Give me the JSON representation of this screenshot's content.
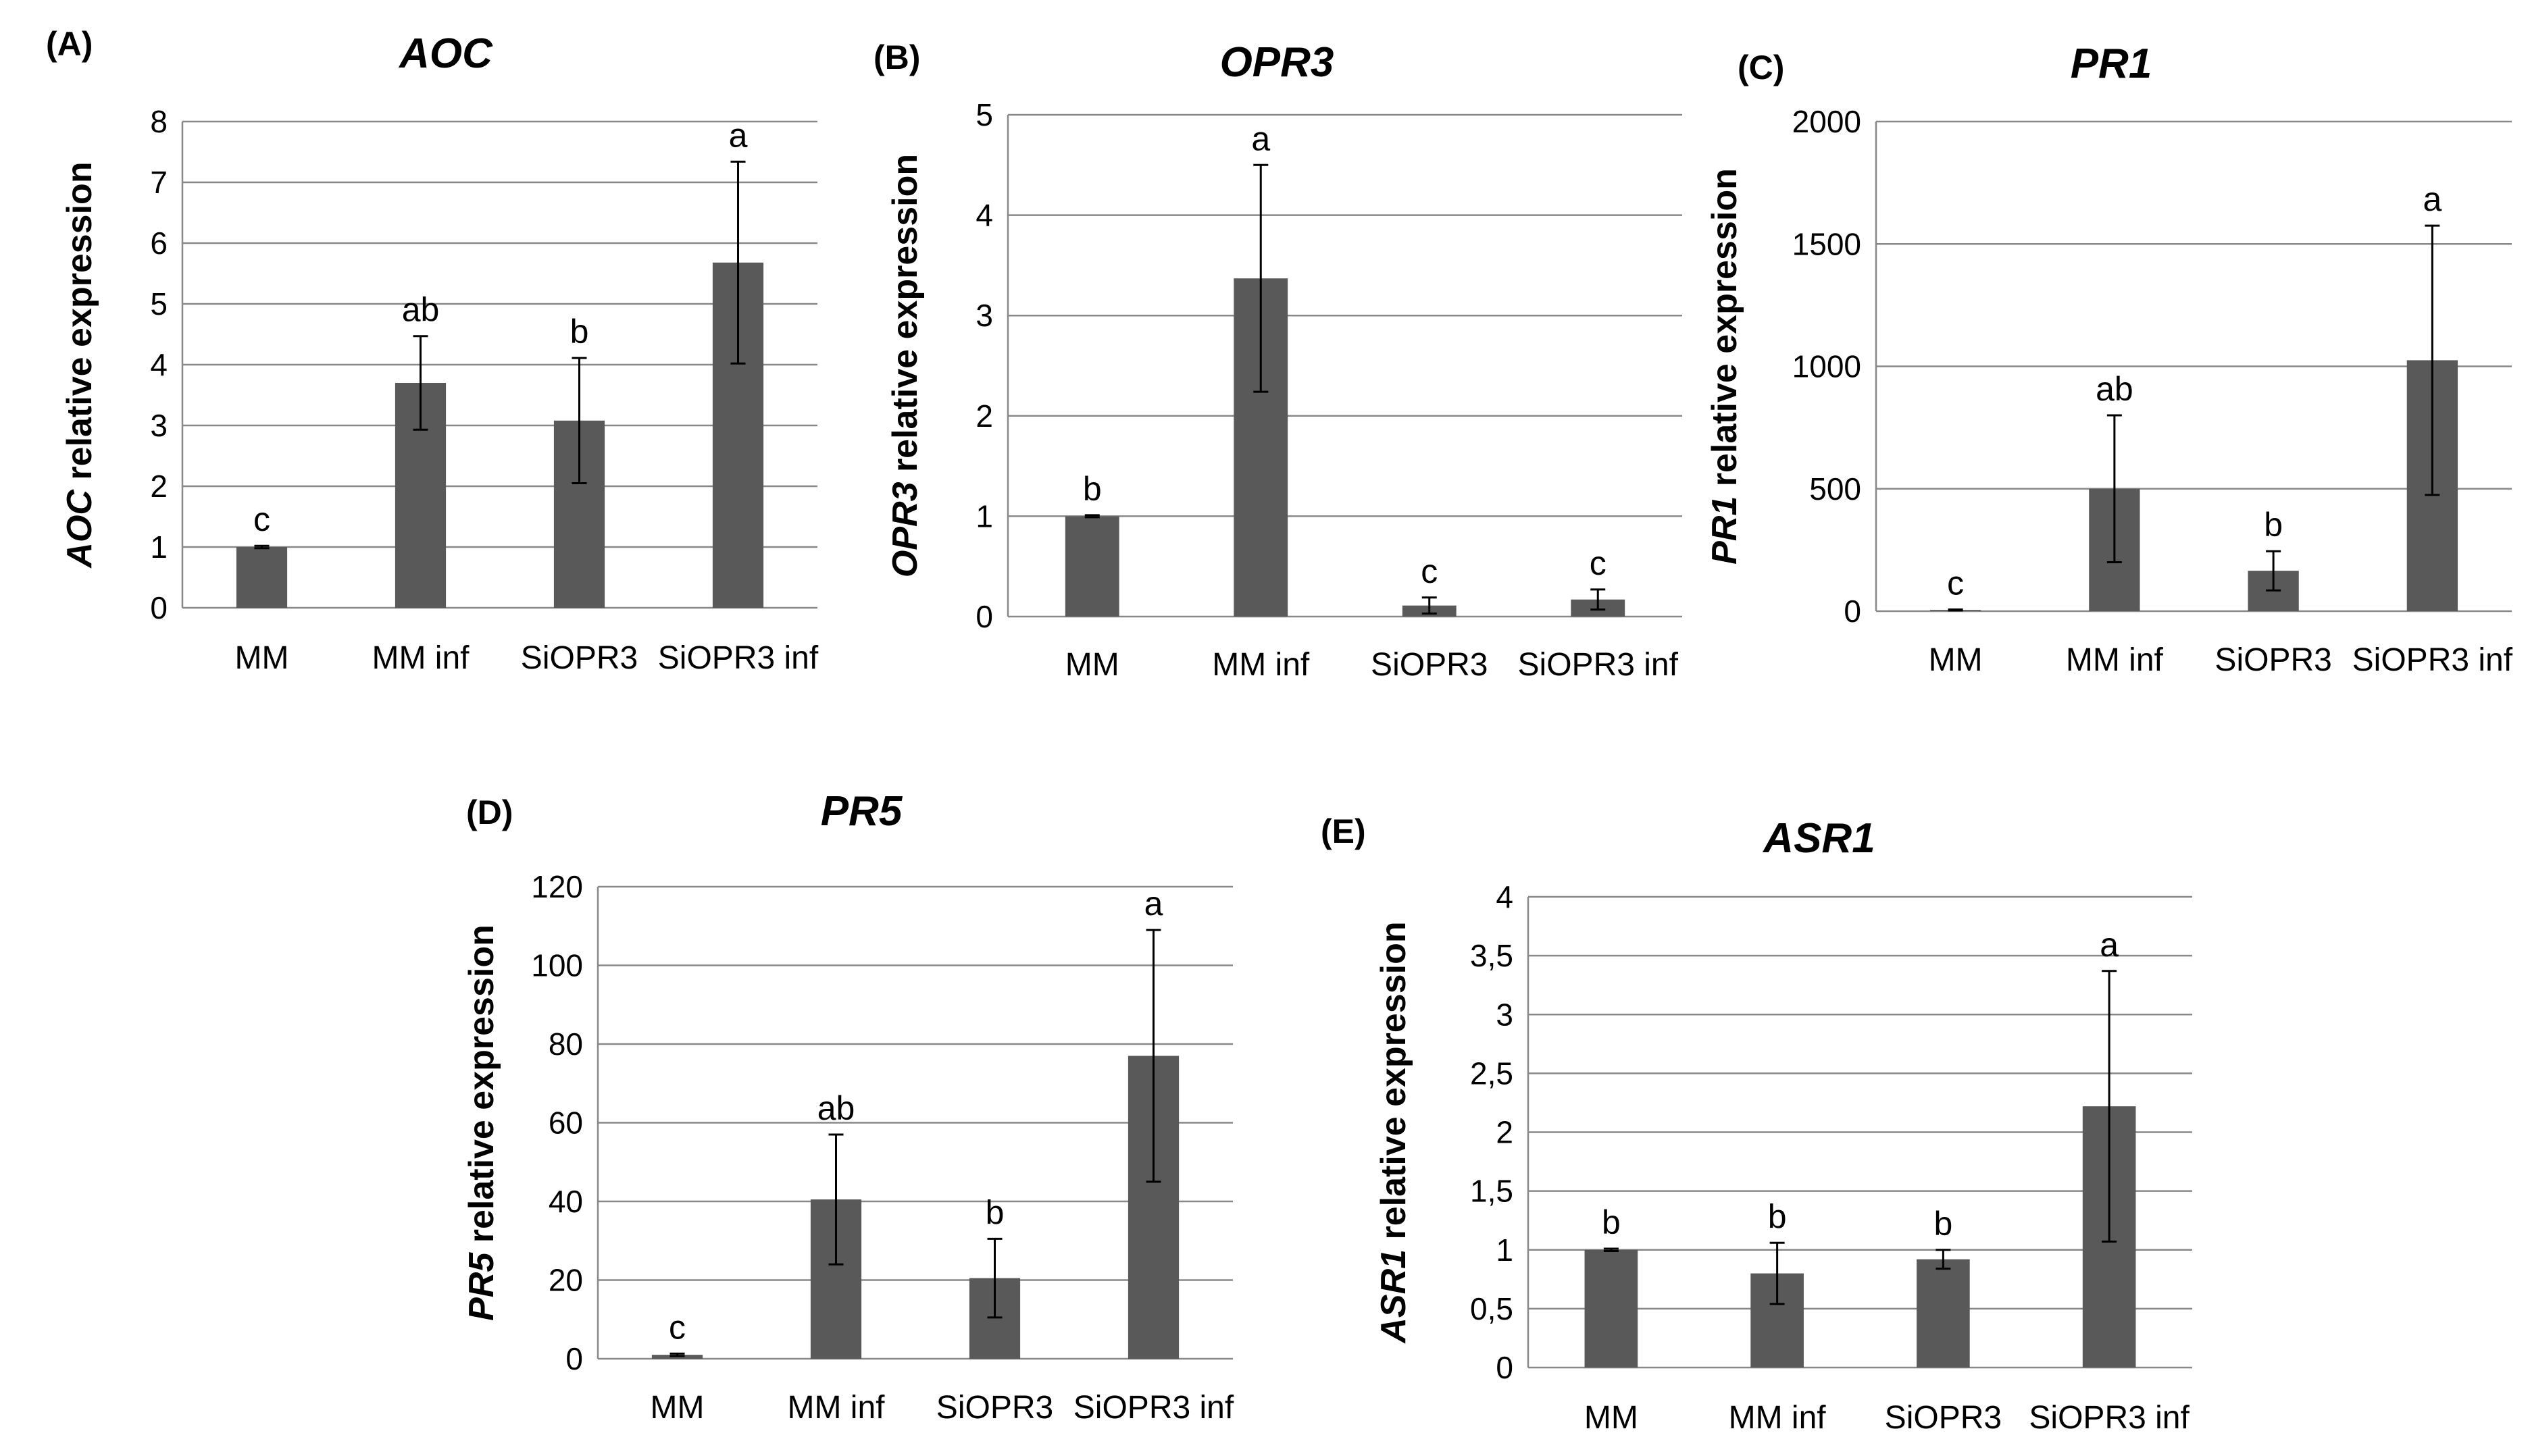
{
  "chart_data": [
    {
      "type": "bar",
      "panel": "(A)",
      "title": "AOC",
      "ylabel_gene": "AOC",
      "ylabel_rest": " relative expression",
      "categories": [
        "MM",
        "MM inf",
        "SiOPR3",
        "SiOPR3 inf"
      ],
      "values": [
        1.0,
        3.7,
        3.08,
        5.68
      ],
      "errors": [
        0.02,
        0.77,
        1.03,
        1.66
      ],
      "significance": [
        "c",
        "ab",
        "b",
        "a"
      ],
      "ylim": [
        0,
        8
      ],
      "yticks": [
        0,
        1,
        2,
        3,
        4,
        5,
        6,
        7,
        8
      ],
      "ytick_labels": [
        "0",
        "1",
        "2",
        "3",
        "4",
        "5",
        "6",
        "7",
        "8"
      ],
      "colors": {
        "bar": "#595959",
        "grid": "#888888"
      }
    },
    {
      "type": "bar",
      "panel": "(B)",
      "title": "OPR3",
      "ylabel_gene": "OPR3",
      "ylabel_rest": " relative  expression",
      "categories": [
        "MM",
        "MM inf",
        "SiOPR3",
        "SiOPR3 inf"
      ],
      "values": [
        1.0,
        3.37,
        0.11,
        0.17
      ],
      "errors": [
        0.01,
        1.13,
        0.08,
        0.1
      ],
      "significance": [
        "b",
        "a",
        "c",
        "c"
      ],
      "ylim": [
        0,
        5
      ],
      "yticks": [
        0,
        1,
        2,
        3,
        4,
        5
      ],
      "ytick_labels": [
        "0",
        "1",
        "2",
        "3",
        "4",
        "5"
      ],
      "colors": {
        "bar": "#595959",
        "grid": "#888888"
      }
    },
    {
      "type": "bar",
      "panel": "(C)",
      "title": "PR1",
      "ylabel_gene": "PR1",
      "ylabel_rest": " relative expression",
      "categories": [
        "MM",
        "MM inf",
        "SiOPR3",
        "SiOPR3 inf"
      ],
      "values": [
        5,
        500,
        165,
        1025
      ],
      "errors": [
        2,
        300,
        80,
        550
      ],
      "significance": [
        "c",
        "ab",
        "b",
        "a"
      ],
      "ylim": [
        0,
        2000
      ],
      "yticks": [
        0,
        500,
        1000,
        1500,
        2000
      ],
      "ytick_labels": [
        "0",
        "500",
        "1000",
        "1500",
        "2000"
      ],
      "colors": {
        "bar": "#595959",
        "grid": "#888888"
      }
    },
    {
      "type": "bar",
      "panel": "(D)",
      "title": "PR5",
      "ylabel_gene": "PR5",
      "ylabel_rest": " relative expression",
      "categories": [
        "MM",
        "MM inf",
        "SiOPR3",
        "SiOPR3 inf"
      ],
      "values": [
        1,
        40.5,
        20.5,
        77
      ],
      "errors": [
        0.3,
        16.5,
        10,
        32
      ],
      "significance": [
        "c",
        "ab",
        "b",
        "a"
      ],
      "ylim": [
        0,
        120
      ],
      "yticks": [
        0,
        20,
        40,
        60,
        80,
        100,
        120
      ],
      "ytick_labels": [
        "0",
        "20",
        "40",
        "60",
        "80",
        "100",
        "120"
      ],
      "colors": {
        "bar": "#595959",
        "grid": "#888888"
      }
    },
    {
      "type": "bar",
      "panel": "(E)",
      "title": "ASR1",
      "ylabel_gene": "ASR1",
      "ylabel_rest": " relative expression",
      "categories": [
        "MM",
        "MM inf",
        "SiOPR3",
        "SiOPR3 inf"
      ],
      "values": [
        1.0,
        0.8,
        0.92,
        2.22
      ],
      "errors": [
        0.01,
        0.26,
        0.08,
        1.15
      ],
      "significance": [
        "b",
        "b",
        "b",
        "a"
      ],
      "ylim": [
        0,
        4
      ],
      "yticks": [
        0,
        0.5,
        1,
        1.5,
        2,
        2.5,
        3,
        3.5,
        4
      ],
      "ytick_labels": [
        "0",
        "0,5",
        "1",
        "1,5",
        "2",
        "2,5",
        "3",
        "3,5",
        "4"
      ],
      "colors": {
        "bar": "#595959",
        "grid": "#888888"
      }
    }
  ]
}
